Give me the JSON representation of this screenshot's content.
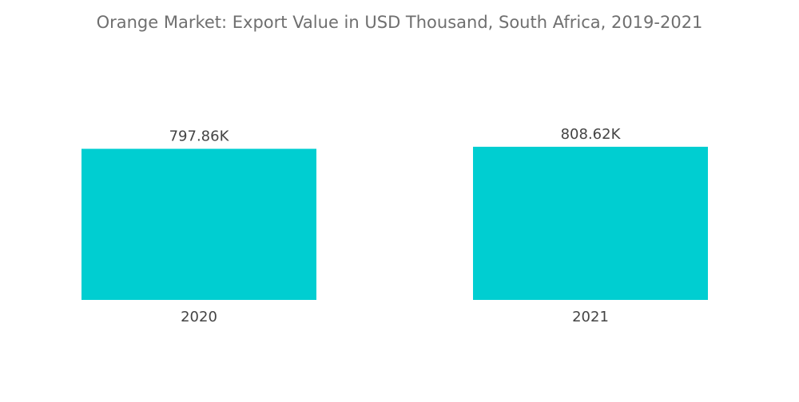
{
  "chart_data": {
    "type": "bar",
    "title": "Orange Market: Export Value in USD Thousand, South Africa, 2019-2021",
    "categories": [
      "2020",
      "2021"
    ],
    "values": [
      797.86,
      808.62
    ],
    "value_labels": [
      "797.86K",
      "808.62K"
    ],
    "xlabel": "",
    "ylabel": "",
    "ylim": [
      0,
      808.62
    ],
    "grid": false,
    "legend": "none",
    "bar_color": "#00CED1"
  }
}
